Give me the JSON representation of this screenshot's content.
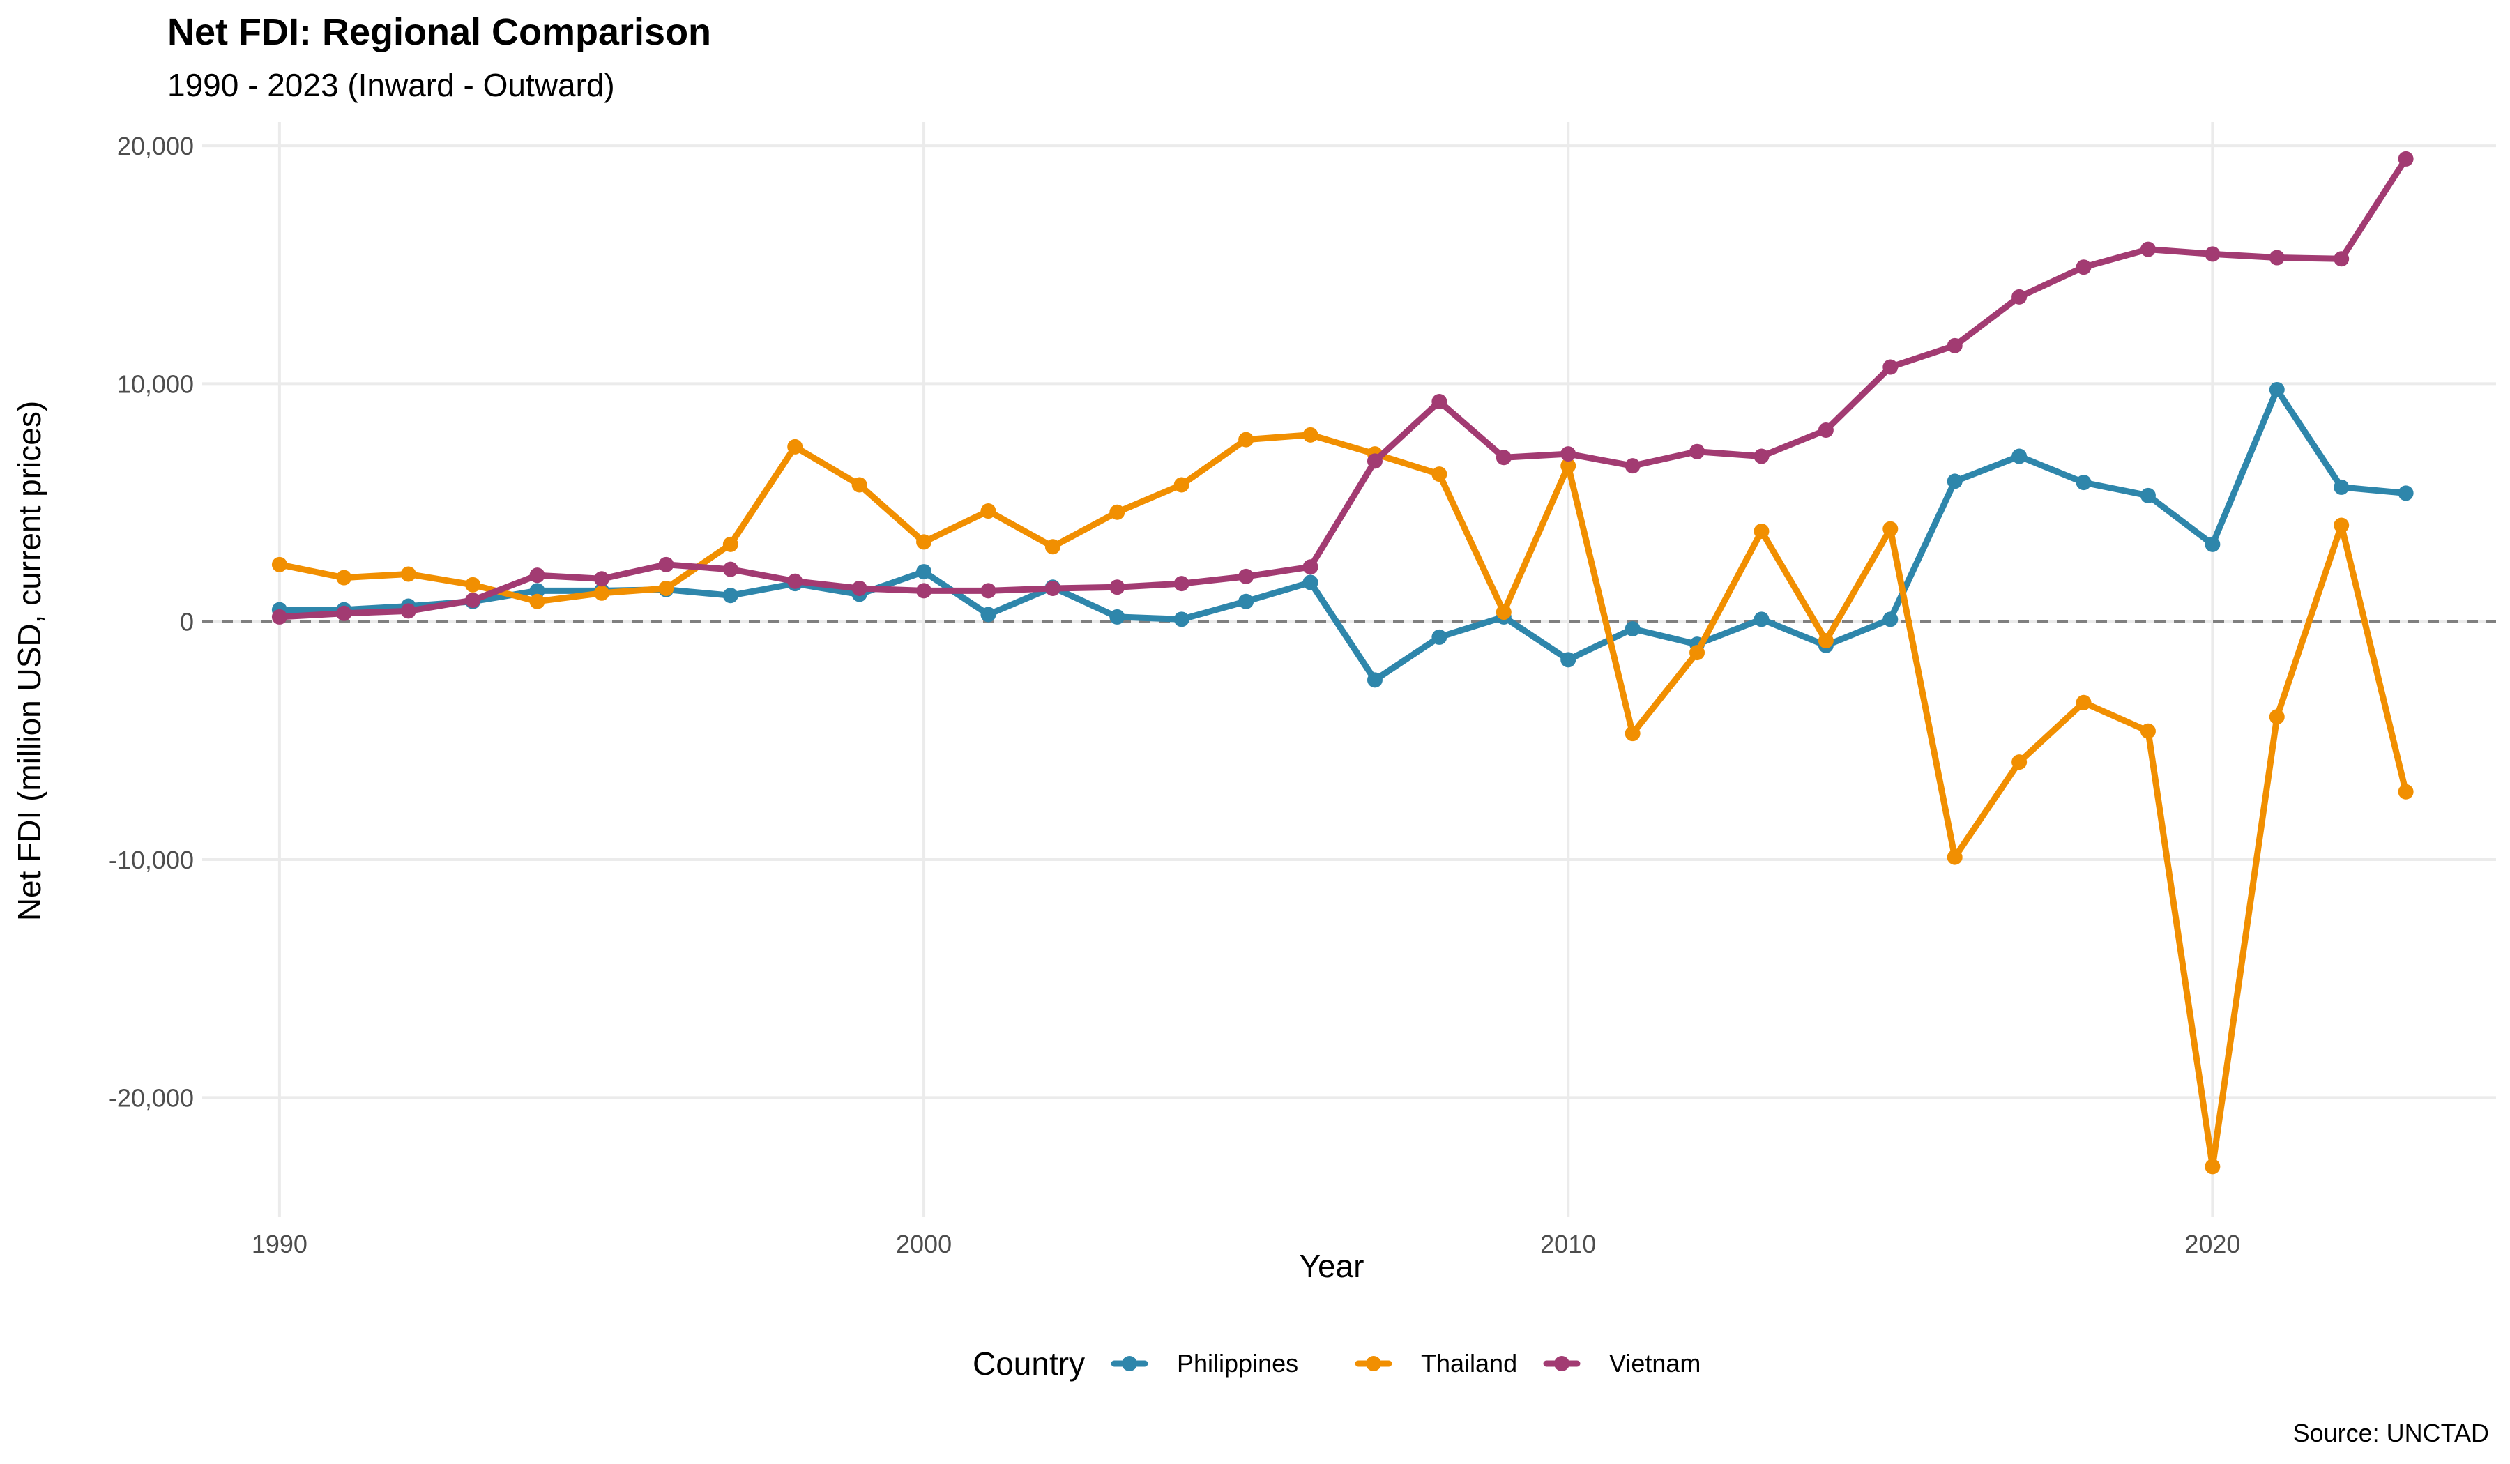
{
  "chart_data": {
    "type": "line",
    "title": "Net FDI: Regional Comparison",
    "subtitle": "1990 - 2023 (Inward - Outward)",
    "xlabel": "Year",
    "ylabel": "Net FDI (million USD, current prices)",
    "caption": "Source: UNCTAD",
    "xlim": [
      1990,
      2023
    ],
    "ylim": [
      -25000,
      21000
    ],
    "x_ticks": [
      1990,
      2000,
      2010,
      2020
    ],
    "y_ticks": [
      -20000,
      -10000,
      0,
      10000,
      20000
    ],
    "y_tick_labels": [
      "-20,000",
      "-10,000",
      "0",
      "10,000",
      "20,000"
    ],
    "grid": true,
    "reference_line": {
      "y": 0,
      "style": "dashed",
      "color": "#7f7f7f"
    },
    "legend": {
      "title": "Country",
      "position": "bottom"
    },
    "x": [
      1990,
      1991,
      1992,
      1993,
      1994,
      1995,
      1996,
      1997,
      1998,
      1999,
      2000,
      2001,
      2002,
      2003,
      2004,
      2005,
      2006,
      2007,
      2008,
      2009,
      2010,
      2011,
      2012,
      2013,
      2014,
      2015,
      2016,
      2017,
      2018,
      2019,
      2020,
      2021,
      2022,
      2023
    ],
    "series": [
      {
        "name": "Philippines",
        "color": "#2e86ab",
        "values": [
          500,
          500,
          650,
          850,
          1300,
          1300,
          1350,
          1100,
          1600,
          1150,
          2100,
          300,
          1450,
          200,
          100,
          850,
          1650,
          -2450,
          -650,
          200,
          -1600,
          -300,
          -950,
          100,
          -1000,
          100,
          5900,
          6950,
          5850,
          5300,
          3250,
          9750,
          5650,
          5400
        ]
      },
      {
        "name": "Thailand",
        "color": "#f18f01",
        "values": [
          2400,
          1850,
          2000,
          1550,
          850,
          1200,
          1400,
          3250,
          7350,
          5750,
          3350,
          4650,
          3150,
          4600,
          5750,
          7650,
          7850,
          7050,
          6200,
          400,
          6550,
          -4700,
          -1300,
          3800,
          -800,
          3900,
          -9900,
          -5900,
          -3400,
          -4600,
          -22900,
          -4000,
          4050,
          -7150
        ]
      },
      {
        "name": "Vietnam",
        "color": "#a23b72",
        "values": [
          200,
          350,
          450,
          900,
          1950,
          1800,
          2400,
          2200,
          1700,
          1400,
          1300,
          1300,
          1400,
          1450,
          1600,
          1900,
          2300,
          6750,
          9250,
          6900,
          7050,
          6550,
          7150,
          6950,
          8050,
          10700,
          11600,
          13650,
          14900,
          15650,
          15450,
          15300,
          15250,
          19450
        ]
      }
    ]
  }
}
